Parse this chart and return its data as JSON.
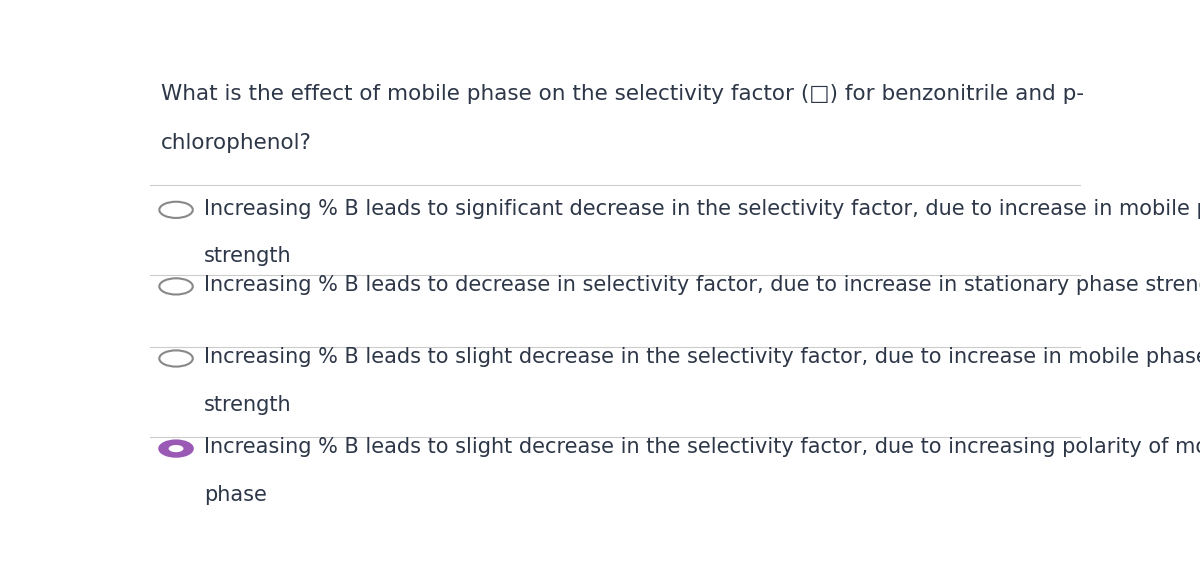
{
  "background_color": "#ffffff",
  "question_line1": "What is the effect of mobile phase on the selectivity factor (□) for benzonitrile and p-",
  "question_line2": "chlorophenol?",
  "question_color": "#2d3748",
  "options": [
    {
      "text_line1": "Increasing % B leads to significant decrease in the selectivity factor, due to increase in mobile phase",
      "text_line2": "strength",
      "selected": false
    },
    {
      "text_line1": "Increasing % B leads to decrease in selectivity factor, due to increase in stationary phase strength",
      "text_line2": null,
      "selected": false
    },
    {
      "text_line1": "Increasing % B leads to slight decrease in the selectivity factor, due to increase in mobile phase",
      "text_line2": "strength",
      "selected": false
    },
    {
      "text_line1": "Increasing % B leads to slight decrease in the selectivity factor, due to increasing polarity of mobile",
      "text_line2": "phase",
      "selected": true
    }
  ],
  "option_color": "#2d3748",
  "selected_circle_edge_color": "#9b59b6",
  "selected_circle_fill_color": "#9b59b6",
  "selected_dot_color": "#ffffff",
  "unselected_circle_edge_color": "#888888",
  "separator_color": "#cccccc",
  "question_fontsize": 15.5,
  "option_fontsize": 15.0,
  "figsize": [
    12.0,
    5.85
  ],
  "dpi": 100
}
